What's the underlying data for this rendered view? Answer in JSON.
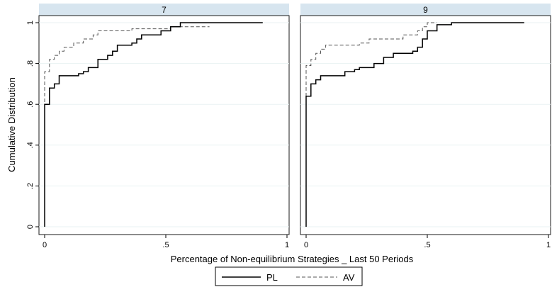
{
  "chart_data": {
    "type": "line",
    "subtype": "step-cdf",
    "ylabel": "Cumulative Distribution",
    "xlabel": "Percentage of Non-equilibrium Strategies _ Last 50 Periods",
    "xlim": [
      0,
      1
    ],
    "ylim": [
      0,
      1
    ],
    "x_ticks": [
      0,
      0.5,
      1
    ],
    "x_tick_labels": [
      "0",
      ".5",
      "1"
    ],
    "y_ticks": [
      0,
      0.2,
      0.4,
      0.6,
      0.8,
      1
    ],
    "y_tick_labels": [
      "0",
      ".2",
      ".4",
      ".6",
      ".8",
      "1"
    ],
    "grid": "horizontal",
    "legend_position": "bottom-center",
    "series_styles": [
      {
        "name": "PL",
        "dash": "solid",
        "color": "#000000"
      },
      {
        "name": "AV",
        "dash": "dashed",
        "color": "#555555"
      }
    ],
    "panels": [
      {
        "title": "7",
        "series": [
          {
            "name": "PL",
            "points": [
              [
                0,
                0
              ],
              [
                0,
                0.6
              ],
              [
                0.02,
                0.6
              ],
              [
                0.02,
                0.68
              ],
              [
                0.04,
                0.68
              ],
              [
                0.04,
                0.7
              ],
              [
                0.06,
                0.7
              ],
              [
                0.06,
                0.74
              ],
              [
                0.14,
                0.74
              ],
              [
                0.14,
                0.75
              ],
              [
                0.16,
                0.75
              ],
              [
                0.16,
                0.76
              ],
              [
                0.18,
                0.76
              ],
              [
                0.18,
                0.78
              ],
              [
                0.22,
                0.78
              ],
              [
                0.22,
                0.82
              ],
              [
                0.26,
                0.82
              ],
              [
                0.26,
                0.84
              ],
              [
                0.28,
                0.84
              ],
              [
                0.28,
                0.86
              ],
              [
                0.3,
                0.86
              ],
              [
                0.3,
                0.89
              ],
              [
                0.36,
                0.89
              ],
              [
                0.36,
                0.9
              ],
              [
                0.38,
                0.9
              ],
              [
                0.38,
                0.92
              ],
              [
                0.4,
                0.92
              ],
              [
                0.4,
                0.94
              ],
              [
                0.48,
                0.94
              ],
              [
                0.48,
                0.96
              ],
              [
                0.52,
                0.96
              ],
              [
                0.52,
                0.98
              ],
              [
                0.56,
                0.98
              ],
              [
                0.56,
                1
              ],
              [
                0.9,
                1
              ]
            ]
          },
          {
            "name": "AV",
            "points": [
              [
                0,
                0
              ],
              [
                0,
                0.76
              ],
              [
                0.02,
                0.76
              ],
              [
                0.02,
                0.82
              ],
              [
                0.04,
                0.82
              ],
              [
                0.04,
                0.84
              ],
              [
                0.06,
                0.84
              ],
              [
                0.06,
                0.86
              ],
              [
                0.08,
                0.86
              ],
              [
                0.08,
                0.88
              ],
              [
                0.12,
                0.88
              ],
              [
                0.12,
                0.9
              ],
              [
                0.16,
                0.9
              ],
              [
                0.16,
                0.92
              ],
              [
                0.2,
                0.92
              ],
              [
                0.2,
                0.94
              ],
              [
                0.22,
                0.94
              ],
              [
                0.22,
                0.96
              ],
              [
                0.36,
                0.96
              ],
              [
                0.36,
                0.97
              ],
              [
                0.52,
                0.97
              ],
              [
                0.52,
                0.98
              ],
              [
                0.68,
                0.98
              ]
            ]
          }
        ]
      },
      {
        "title": "9",
        "series": [
          {
            "name": "PL",
            "points": [
              [
                0,
                0
              ],
              [
                0,
                0.64
              ],
              [
                0.02,
                0.64
              ],
              [
                0.02,
                0.7
              ],
              [
                0.04,
                0.7
              ],
              [
                0.04,
                0.72
              ],
              [
                0.06,
                0.72
              ],
              [
                0.06,
                0.74
              ],
              [
                0.16,
                0.74
              ],
              [
                0.16,
                0.76
              ],
              [
                0.2,
                0.76
              ],
              [
                0.2,
                0.77
              ],
              [
                0.22,
                0.77
              ],
              [
                0.22,
                0.78
              ],
              [
                0.28,
                0.78
              ],
              [
                0.28,
                0.8
              ],
              [
                0.32,
                0.8
              ],
              [
                0.32,
                0.83
              ],
              [
                0.36,
                0.83
              ],
              [
                0.36,
                0.85
              ],
              [
                0.44,
                0.85
              ],
              [
                0.44,
                0.86
              ],
              [
                0.46,
                0.86
              ],
              [
                0.46,
                0.88
              ],
              [
                0.48,
                0.88
              ],
              [
                0.48,
                0.92
              ],
              [
                0.5,
                0.92
              ],
              [
                0.5,
                0.96
              ],
              [
                0.54,
                0.96
              ],
              [
                0.54,
                0.99
              ],
              [
                0.6,
                0.99
              ],
              [
                0.6,
                1
              ],
              [
                0.9,
                1
              ]
            ]
          },
          {
            "name": "AV",
            "points": [
              [
                0,
                0
              ],
              [
                0,
                0.79
              ],
              [
                0.02,
                0.79
              ],
              [
                0.02,
                0.82
              ],
              [
                0.04,
                0.82
              ],
              [
                0.04,
                0.85
              ],
              [
                0.06,
                0.85
              ],
              [
                0.06,
                0.87
              ],
              [
                0.08,
                0.87
              ],
              [
                0.08,
                0.89
              ],
              [
                0.22,
                0.89
              ],
              [
                0.22,
                0.9
              ],
              [
                0.26,
                0.9
              ],
              [
                0.26,
                0.92
              ],
              [
                0.4,
                0.92
              ],
              [
                0.4,
                0.94
              ],
              [
                0.46,
                0.94
              ],
              [
                0.46,
                0.96
              ],
              [
                0.48,
                0.96
              ],
              [
                0.48,
                0.98
              ],
              [
                0.5,
                0.98
              ],
              [
                0.5,
                1
              ],
              [
                0.54,
                1
              ]
            ]
          }
        ]
      }
    ]
  }
}
